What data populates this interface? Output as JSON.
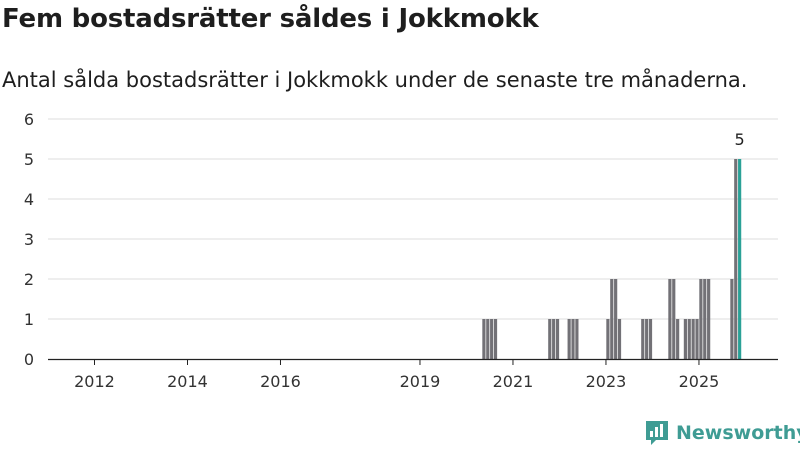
{
  "header": {
    "title": "Fem bostadsrätter såldes i Jokkmokk",
    "subtitle": "Antal sålda bostadsrätter i Jokkmokk under de senaste tre månaderna."
  },
  "brand": {
    "name": "Newsworthy",
    "icon": "newsworthy-logo-icon",
    "color": "#3f9c94"
  },
  "chart_data": {
    "type": "bar",
    "ylim": [
      0,
      6
    ],
    "yticks": [
      0,
      1,
      2,
      3,
      4,
      5,
      6
    ],
    "xticks": [
      "2012",
      "2014",
      "2016",
      "2019",
      "2021",
      "2023",
      "2025"
    ],
    "grid": true,
    "bar_color": "#727176",
    "highlight_color": "#2aa197",
    "bars": [
      {
        "date": "2020-05",
        "value": 1
      },
      {
        "date": "2020-06",
        "value": 1
      },
      {
        "date": "2020-07",
        "value": 1
      },
      {
        "date": "2020-08",
        "value": 1
      },
      {
        "date": "2021-10",
        "value": 1
      },
      {
        "date": "2021-11",
        "value": 1
      },
      {
        "date": "2021-12",
        "value": 1
      },
      {
        "date": "2022-03",
        "value": 1
      },
      {
        "date": "2022-04",
        "value": 1
      },
      {
        "date": "2022-05",
        "value": 1
      },
      {
        "date": "2023-01",
        "value": 1
      },
      {
        "date": "2023-02",
        "value": 2
      },
      {
        "date": "2023-03",
        "value": 2
      },
      {
        "date": "2023-04",
        "value": 1
      },
      {
        "date": "2023-10",
        "value": 1
      },
      {
        "date": "2023-11",
        "value": 1
      },
      {
        "date": "2023-12",
        "value": 1
      },
      {
        "date": "2024-05",
        "value": 2
      },
      {
        "date": "2024-06",
        "value": 2
      },
      {
        "date": "2024-07",
        "value": 1
      },
      {
        "date": "2024-09",
        "value": 1
      },
      {
        "date": "2024-10",
        "value": 1
      },
      {
        "date": "2024-11",
        "value": 1
      },
      {
        "date": "2024-12",
        "value": 1
      },
      {
        "date": "2025-01",
        "value": 2
      },
      {
        "date": "2025-02",
        "value": 2
      },
      {
        "date": "2025-03",
        "value": 2
      },
      {
        "date": "2025-09",
        "value": 2
      },
      {
        "date": "2025-10",
        "value": 5
      },
      {
        "date": "2025-11",
        "value": 5,
        "highlight": true,
        "label": "5"
      }
    ]
  }
}
